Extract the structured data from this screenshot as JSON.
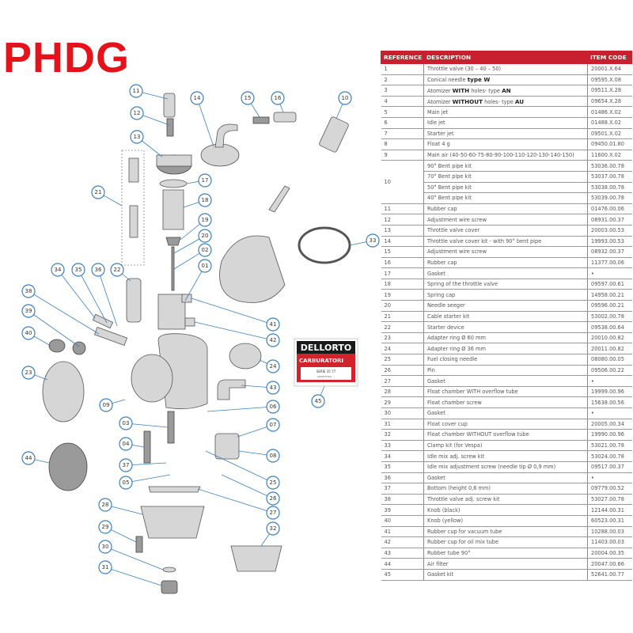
{
  "title": "PHDG",
  "logo": {
    "brand": "DELLORTO",
    "sub": "CARBURATORI",
    "line1": "SERIE 35 77",
    "line2": "SERIE PHDG ..."
  },
  "colors": {
    "title": "#e4121b",
    "header": "#c8202f",
    "callout": "#3a7fc0"
  },
  "table": {
    "headers": {
      "reference": "REFERENCE",
      "description": "DESCRIPTION",
      "code": "ITEM CODE"
    },
    "rows": [
      {
        "ref": "1",
        "desc": [
          [
            "Throttle valve (30 – 40 – 50)",
            false
          ]
        ],
        "code": "20001.X.64"
      },
      {
        "ref": "2",
        "desc": [
          [
            "Conical needle ",
            false
          ],
          [
            "type W",
            true
          ]
        ],
        "code": "09595.X.08"
      },
      {
        "ref": "3",
        "desc": [
          [
            "Atomizer ",
            false
          ],
          [
            "WITH",
            true
          ],
          [
            " holes- type ",
            false
          ],
          [
            "AN",
            true
          ]
        ],
        "code": "09511.X.28"
      },
      {
        "ref": "4",
        "desc": [
          [
            "Atomizer ",
            false
          ],
          [
            "WITHOUT",
            true
          ],
          [
            " holes- type ",
            false
          ],
          [
            "AU",
            true
          ]
        ],
        "code": "09654.X.28"
      },
      {
        "ref": "5",
        "desc": [
          [
            "Main jet",
            false
          ]
        ],
        "code": "01486.X.02"
      },
      {
        "ref": "6",
        "desc": [
          [
            "Idle jet",
            false
          ]
        ],
        "code": "01488.X.02"
      },
      {
        "ref": "7",
        "desc": [
          [
            "Starter jet",
            false
          ]
        ],
        "code": "09501.X.02"
      },
      {
        "ref": "8",
        "desc": [
          [
            "Float 4 g",
            false
          ]
        ],
        "code": "09450.01.80"
      },
      {
        "ref": "9",
        "desc": [
          [
            "Main air (40-50-60-75-80-90-100-110-120-130-140-150)",
            false
          ]
        ],
        "code": "11600.X.02"
      },
      {
        "ref": "10",
        "span": 4,
        "desc": [
          [
            "90° Bent pipe kit",
            false
          ]
        ],
        "code": "53036.00.78"
      },
      {
        "desc": [
          [
            "70° Bent pipe kit",
            false
          ]
        ],
        "code": "53037.00.78"
      },
      {
        "desc": [
          [
            "50° Bent pipe kit",
            false
          ]
        ],
        "code": "53038.00.78"
      },
      {
        "desc": [
          [
            "40° Bent pipe kit",
            false
          ]
        ],
        "code": "53039.00.78"
      },
      {
        "ref": "11",
        "desc": [
          [
            "Rubber cap",
            false
          ]
        ],
        "code": "01476.00.06"
      },
      {
        "ref": "12",
        "desc": [
          [
            "Adjustment wire screw",
            false
          ]
        ],
        "code": "08931.00.37"
      },
      {
        "ref": "13",
        "desc": [
          [
            "Throttle valve cover",
            false
          ]
        ],
        "code": "20003.00.53"
      },
      {
        "ref": "14",
        "desc": [
          [
            "Throttle valve cover kit - with 90° bent pipe",
            false
          ]
        ],
        "code": "19993.00.53"
      },
      {
        "ref": "15",
        "desc": [
          [
            "Adjustment wire screw",
            false
          ]
        ],
        "code": "08932.00.37"
      },
      {
        "ref": "16",
        "desc": [
          [
            "Rubber cap",
            false
          ]
        ],
        "code": "11377.00.06"
      },
      {
        "ref": "17",
        "desc": [
          [
            "Gasket",
            false
          ]
        ],
        "code": "•"
      },
      {
        "ref": "18",
        "desc": [
          [
            "Spring of the throttle valve",
            false
          ]
        ],
        "code": "09597.00.61"
      },
      {
        "ref": "19",
        "desc": [
          [
            "Spring cap",
            false
          ]
        ],
        "code": "14958.00.21"
      },
      {
        "ref": "20",
        "desc": [
          [
            "Needle seeger",
            false
          ]
        ],
        "code": "09596.00.21"
      },
      {
        "ref": "21",
        "desc": [
          [
            "Cable starter kit",
            false
          ]
        ],
        "code": "53002.00.78"
      },
      {
        "ref": "22",
        "desc": [
          [
            "Starter device",
            false
          ]
        ],
        "code": "09538.00.64"
      },
      {
        "ref": "23",
        "desc": [
          [
            "Adapter ring Ø 60 mm",
            false
          ]
        ],
        "code": "20010.00.82"
      },
      {
        "ref": "24",
        "desc": [
          [
            "Adapter ring Ø 36 mm",
            false
          ]
        ],
        "code": "20011.00.82"
      },
      {
        "ref": "25",
        "desc": [
          [
            "Fuel closing needle",
            false
          ]
        ],
        "code": "08080.00.05"
      },
      {
        "ref": "26",
        "desc": [
          [
            "Pin",
            false
          ]
        ],
        "code": "09506.00.22"
      },
      {
        "ref": "27",
        "desc": [
          [
            "Gasket",
            false
          ]
        ],
        "code": "•"
      },
      {
        "ref": "28",
        "desc": [
          [
            "Float chamber WITH overflow tube",
            false
          ]
        ],
        "code": "19999.00.96"
      },
      {
        "ref": "29",
        "desc": [
          [
            "Float chamber screw",
            false
          ]
        ],
        "code": "15638.00.56"
      },
      {
        "ref": "30",
        "desc": [
          [
            "Gasket",
            false
          ]
        ],
        "code": "•"
      },
      {
        "ref": "31",
        "desc": [
          [
            "Float cover cup",
            false
          ]
        ],
        "code": "20005.00.34"
      },
      {
        "ref": "32",
        "desc": [
          [
            "Float chamber WITHOUT overflow tube",
            false
          ]
        ],
        "code": "19990.00.96"
      },
      {
        "ref": "33",
        "desc": [
          [
            "Clamp kit (for Vespa)",
            false
          ]
        ],
        "code": "53021.00.78"
      },
      {
        "ref": "34",
        "desc": [
          [
            "Idle mix adj. screw kit",
            false
          ]
        ],
        "code": "53024.00.78"
      },
      {
        "ref": "35",
        "desc": [
          [
            "Idle mix adjustment screw (needle tip Ø 0,9 mm)",
            false
          ]
        ],
        "code": "09517.00.37"
      },
      {
        "ref": "36",
        "desc": [
          [
            "Gasket",
            false
          ]
        ],
        "code": "•"
      },
      {
        "ref": "37",
        "desc": [
          [
            "Bottom (height 0,6 mm)",
            false
          ]
        ],
        "code": "09779.00.52"
      },
      {
        "ref": "38",
        "desc": [
          [
            "Throttle valve adj. screw kit",
            false
          ]
        ],
        "code": "53027.00.78"
      },
      {
        "ref": "39",
        "desc": [
          [
            "Knob (black)",
            false
          ]
        ],
        "code": "12144.00.31"
      },
      {
        "ref": "40",
        "desc": [
          [
            "Knob (yellow)",
            false
          ]
        ],
        "code": "60523.00.31"
      },
      {
        "ref": "41",
        "desc": [
          [
            "Rubber cup for vacuum tube",
            false
          ]
        ],
        "code": "10288.00.03"
      },
      {
        "ref": "42",
        "desc": [
          [
            "Rubber cup for oil mix tube",
            false
          ]
        ],
        "code": "11403.00.03"
      },
      {
        "ref": "43",
        "desc": [
          [
            "Rubber tube 90°",
            false
          ]
        ],
        "code": "20004.00.35"
      },
      {
        "ref": "44",
        "desc": [
          [
            "Air filter",
            false
          ]
        ],
        "code": "20047.00.66"
      },
      {
        "ref": "45",
        "desc": [
          [
            "Gasket kit",
            false
          ]
        ],
        "code": "52641.00.77"
      }
    ]
  },
  "callouts": [
    "11",
    "12",
    "13",
    "14",
    "15",
    "16",
    "10",
    "17",
    "18",
    "19",
    "20",
    "02",
    "01",
    "21",
    "22",
    "34",
    "35",
    "36",
    "38",
    "39",
    "40",
    "41",
    "42",
    "23",
    "24",
    "43",
    "45",
    "33",
    "09",
    "06",
    "03",
    "07",
    "04",
    "08",
    "37",
    "05",
    "25",
    "26",
    "27",
    "44",
    "28",
    "32",
    "29",
    "30",
    "31"
  ]
}
